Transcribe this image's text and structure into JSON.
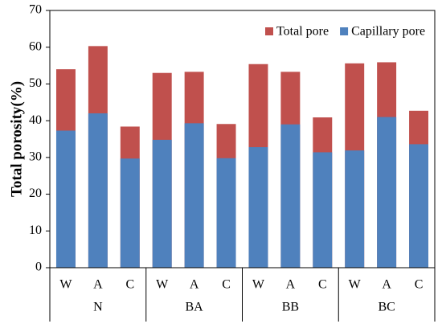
{
  "chart_data": {
    "type": "bar",
    "barmode": "overlay",
    "y_label": "Total porosity(%)",
    "categories": [
      "W",
      "A",
      "C",
      "W",
      "A",
      "C",
      "W",
      "A",
      "C",
      "W",
      "A",
      "C"
    ],
    "groups": [
      "N",
      "BA",
      "BB",
      "BC"
    ],
    "series": [
      {
        "name": "Total pore",
        "color": "#c0504d",
        "values": [
          54,
          60.3,
          38.4,
          53,
          53.3,
          39.1,
          55.4,
          53.3,
          40.9,
          55.6,
          55.9,
          42.7
        ]
      },
      {
        "name": "Capillary pore",
        "color": "#4f81bd",
        "values": [
          37.3,
          42,
          29.7,
          34.8,
          39.3,
          29.8,
          32.8,
          39,
          31.4,
          31.9,
          41,
          33.6
        ]
      }
    ],
    "ylim": [
      0,
      70
    ],
    "yticks": [
      0,
      10,
      20,
      30,
      40,
      50,
      60,
      70
    ],
    "grid": false,
    "legend": "top-right"
  }
}
